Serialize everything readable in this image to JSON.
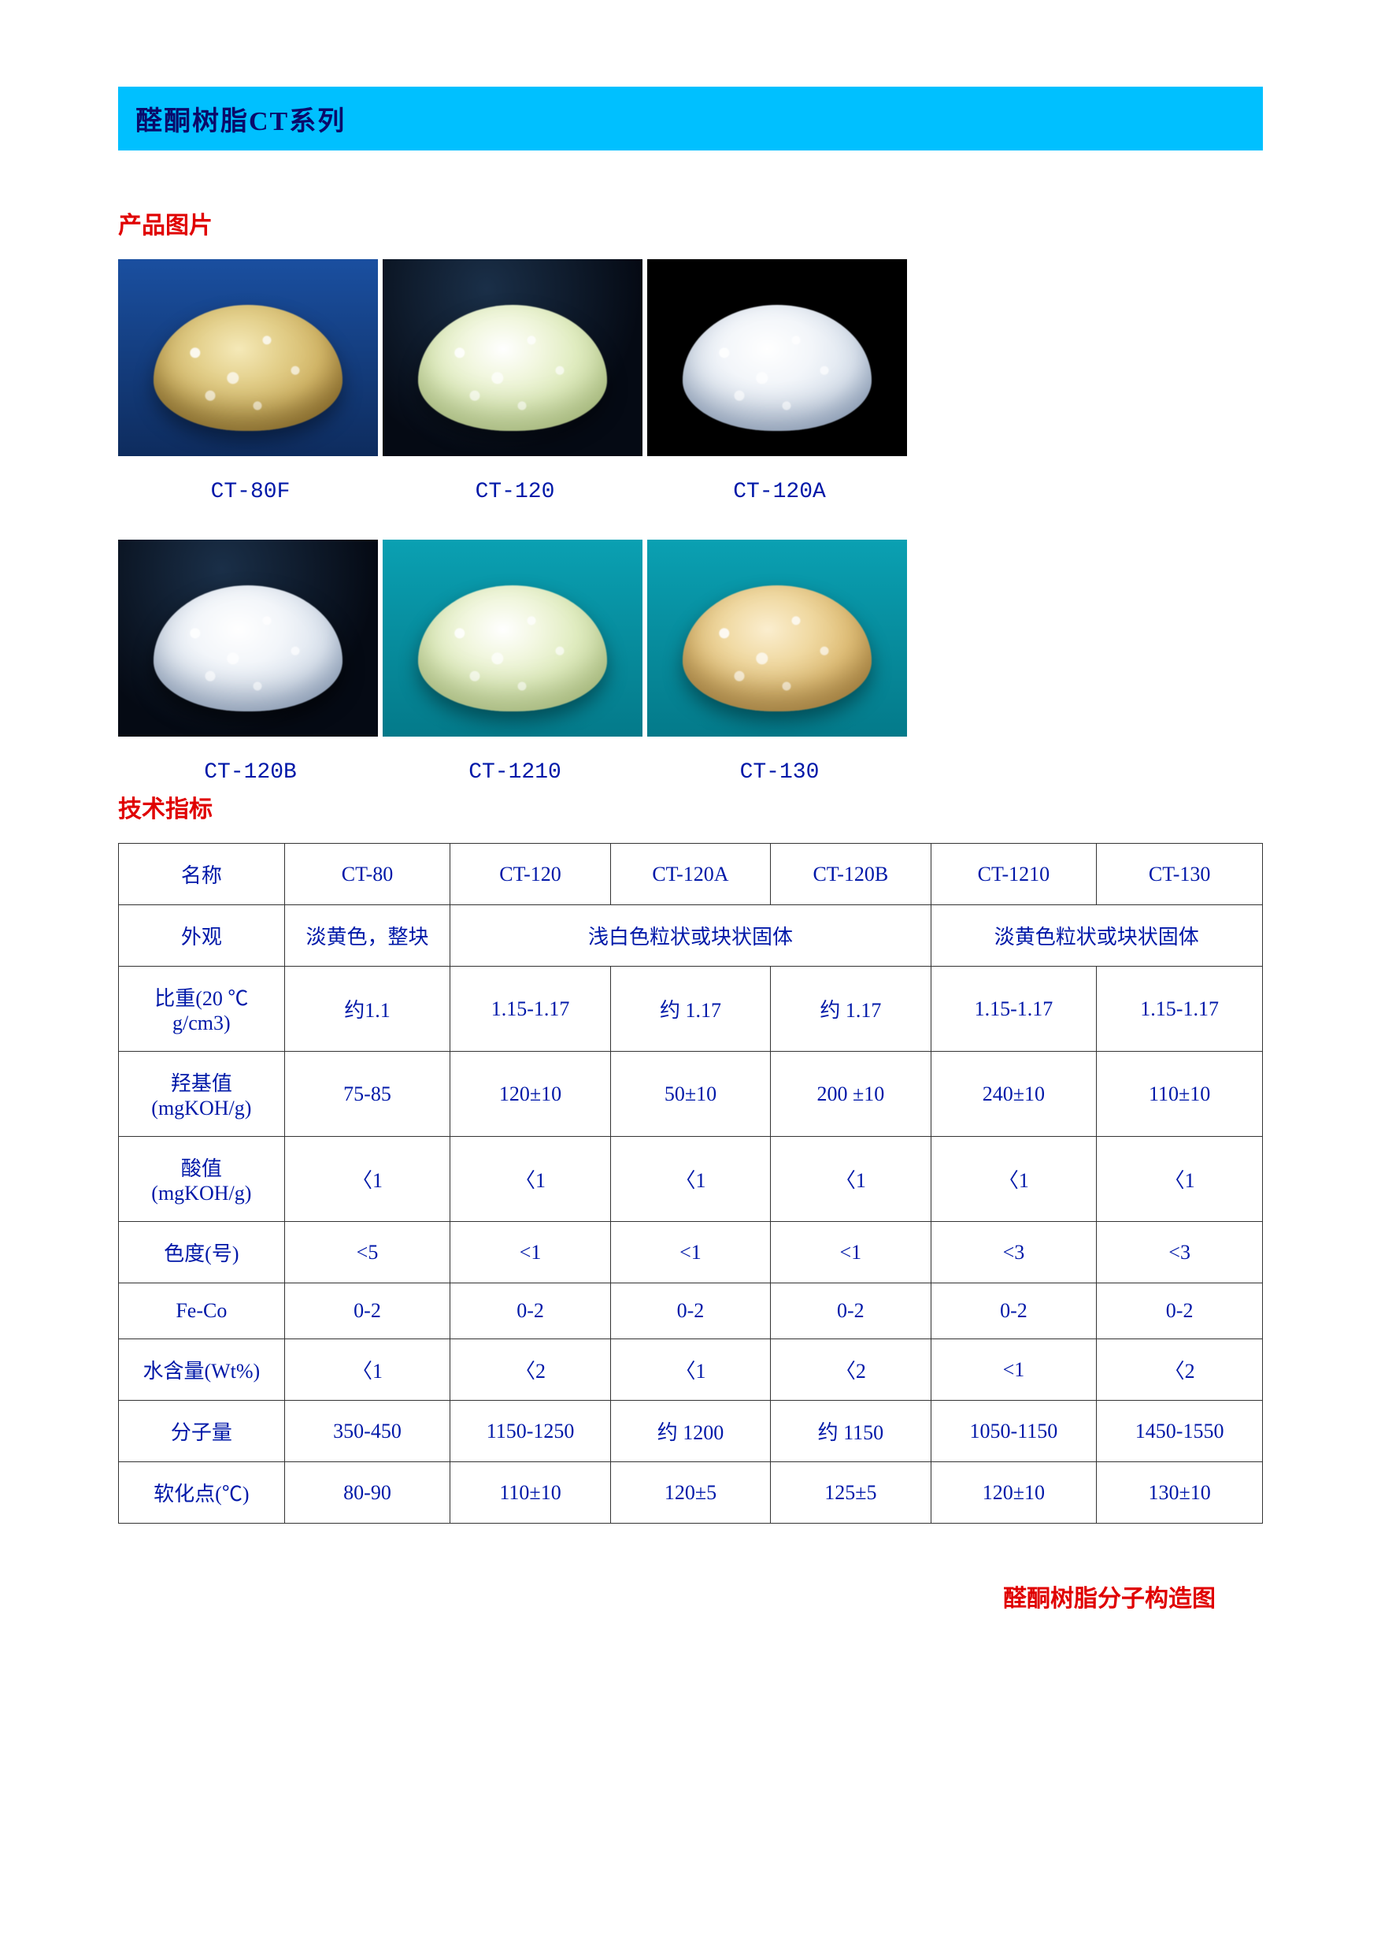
{
  "banner_title": "醛酮树脂CT系列",
  "section_images_title": "产品图片",
  "section_spec_title": "技术指标",
  "footer_note": "醛酮树脂分子构造图",
  "image_row1": [
    {
      "name": "CT-80F",
      "bg_class": "bg-blue",
      "pile_class": "amber"
    },
    {
      "name": "CT-120",
      "bg_class": "bg-dark",
      "pile_class": "palegreen"
    },
    {
      "name": "CT-120A",
      "bg_class": "bg-black",
      "pile_class": "white"
    }
  ],
  "image_row2": [
    {
      "name": "CT-120B",
      "bg_class": "bg-dark",
      "pile_class": "white"
    },
    {
      "name": "CT-1210",
      "bg_class": "bg-teal",
      "pile_class": "palegreen"
    },
    {
      "name": "CT-130",
      "bg_class": "bg-teal",
      "pile_class": "tan"
    }
  ],
  "table": {
    "header": [
      "名称",
      "CT-80",
      "CT-120",
      "CT-120A",
      "CT-120B",
      "CT-1210",
      "CT-130"
    ],
    "appearance_row": {
      "label": "外观",
      "c1": "淡黄色，整块",
      "c2_span3": "浅白色粒状或块状固体",
      "c3_span2": "淡黄色粒状或块状固体"
    },
    "rows": [
      {
        "label_l1": "比重(20 ℃",
        "label_l2": "g/cm3)",
        "v": [
          "约1.1",
          "1.15-1.17",
          "约  1.17",
          "约  1.17",
          "1.15-1.17",
          "1.15-1.17"
        ]
      },
      {
        "label_l1": "羟基值",
        "label_l2": "(mgKOH/g)",
        "v": [
          "75-85",
          "120±10",
          "50±10",
          "200 ±10",
          "240±10",
          "110±10"
        ]
      },
      {
        "label_l1": "酸值",
        "label_l2": "(mgKOH/g)",
        "v": [
          "〈1",
          "〈1",
          "〈1",
          "〈1",
          "〈1",
          "〈1"
        ]
      },
      {
        "label_l1": "色度(号)",
        "label_l2": "",
        "v": [
          "<5",
          "<1",
          "<1",
          "<1",
          "<3",
          "<3"
        ]
      },
      {
        "label_l1": "Fe-Co",
        "label_l2": "",
        "v": [
          "0-2",
          "0-2",
          "0-2",
          "0-2",
          "0-2",
          "0-2"
        ]
      },
      {
        "label_l1": "水含量(Wt%)",
        "label_l2": "",
        "v": [
          "〈1",
          "〈2",
          "〈1",
          "〈2",
          "<1",
          "〈2"
        ]
      },
      {
        "label_l1": "分子量",
        "label_l2": "",
        "v": [
          "350-450",
          "1150-1250",
          "约  1200",
          "约  1150",
          "1050-1150",
          "1450-1550"
        ]
      },
      {
        "label_l1": "软化点(℃)",
        "label_l2": "",
        "v": [
          "80-90",
          "110±10",
          "120±5",
          "125±5",
          "120±10",
          "130±10"
        ]
      }
    ]
  }
}
